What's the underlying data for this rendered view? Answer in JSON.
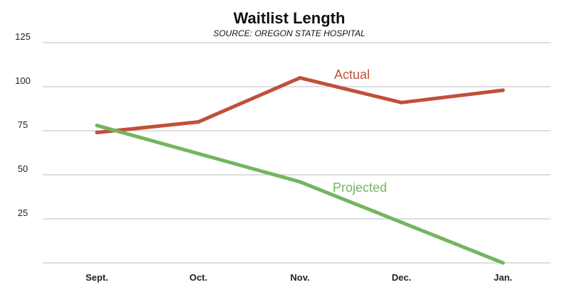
{
  "chart_data": {
    "type": "line",
    "title": "Waitlist Length",
    "subtitle": "SOURCE: OREGON STATE HOSPITAL",
    "categories": [
      "Sept.",
      "Oct.",
      "Nov.",
      "Dec.",
      "Jan."
    ],
    "ylim": [
      0,
      125
    ],
    "yticks": [
      25,
      50,
      75,
      100,
      125
    ],
    "grid": true,
    "series": [
      {
        "name": "Actual",
        "color": "#c0503a",
        "values": [
          74,
          80,
          105,
          91,
          98
        ]
      },
      {
        "name": "Projected",
        "color": "#74b55f",
        "values": [
          78,
          62,
          46,
          23,
          0
        ]
      }
    ]
  }
}
